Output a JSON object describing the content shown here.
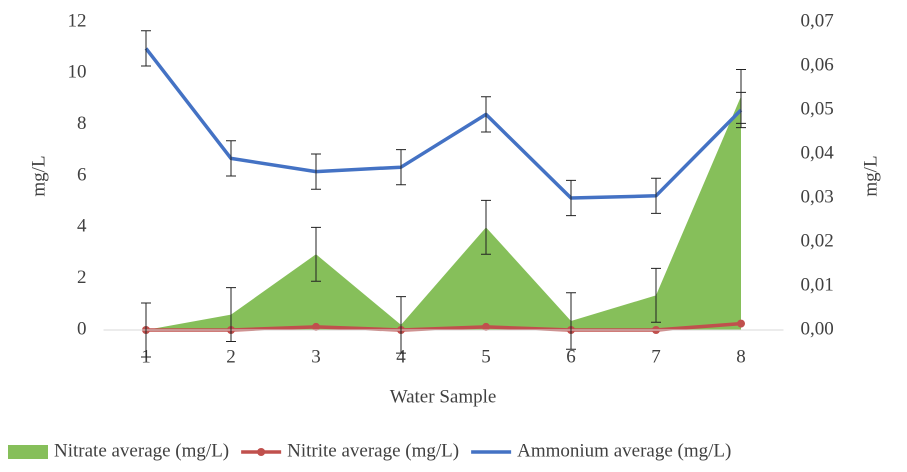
{
  "chart_data": {
    "type": "line",
    "x_label": "Water Sample",
    "y_label": "mg/L",
    "y2_label": "mg/L",
    "categories": [
      "1",
      "2",
      "3",
      "4",
      "5",
      "6",
      "7",
      "8"
    ],
    "ylim": [
      0,
      12
    ],
    "yticks": [
      0,
      2,
      4,
      6,
      8,
      10,
      12
    ],
    "y2lim": [
      0,
      0.07
    ],
    "y2ticks": [
      {
        "value": 0,
        "label": "0,00"
      },
      {
        "value": 0.01,
        "label": "0,01"
      },
      {
        "value": 0.02,
        "label": "0,02"
      },
      {
        "value": 0.03,
        "label": "0,03"
      },
      {
        "value": 0.04,
        "label": "0,04"
      },
      {
        "value": 0.05,
        "label": "0,05"
      },
      {
        "value": 0.06,
        "label": "0,06"
      },
      {
        "value": 0.07,
        "label": "0,07"
      }
    ],
    "legend": "bottom",
    "series": [
      {
        "name": "Nitrate average (mg/L)",
        "kind": "area",
        "color": "#86bf5a",
        "values": [
          0,
          0.6,
          2.95,
          0.2,
          4.0,
          0.35,
          1.35,
          9.1
        ],
        "error": [
          1.05,
          1.05,
          1.05,
          1.1,
          1.05,
          1.1,
          1.05,
          1.05
        ]
      },
      {
        "name": "Nitrite average (mg/L)",
        "kind": "line",
        "color": "#c0504d",
        "values": [
          0,
          0,
          0.12,
          0,
          0.12,
          0,
          0,
          0.25
        ]
      },
      {
        "name": "Ammonium average (mg/L)",
        "kind": "line",
        "axis": "y2",
        "color": "#4472c4",
        "values": [
          0.064,
          0.039,
          0.036,
          0.037,
          0.049,
          0.03,
          0.0305,
          0.05
        ],
        "error": [
          0.004,
          0.004,
          0.004,
          0.004,
          0.004,
          0.004,
          0.004,
          0.004
        ]
      }
    ]
  }
}
